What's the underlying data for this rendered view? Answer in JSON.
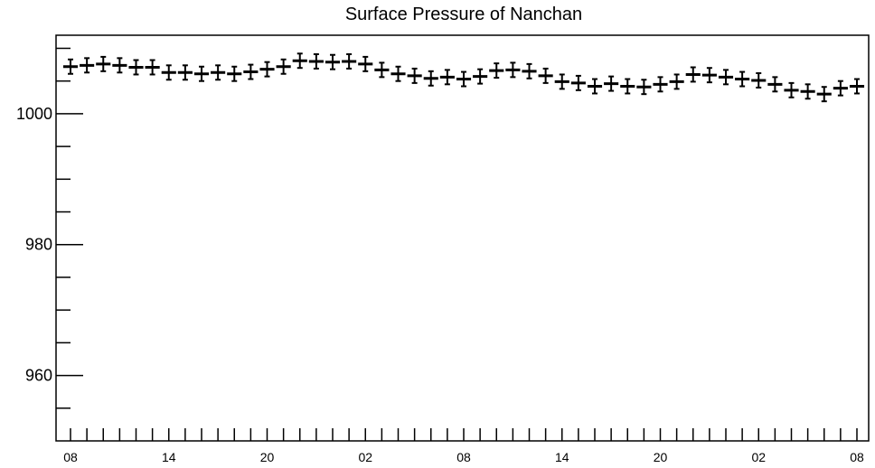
{
  "chart_data": {
    "type": "errorbar",
    "title": "Surface Pressure of Nanchan",
    "xlabel": "",
    "ylabel": "",
    "ylim": [
      950,
      1012
    ],
    "y_major_ticks": [
      960,
      980,
      1000
    ],
    "y_minor_step": 5,
    "x_tick_labels": [
      "08",
      "14",
      "20",
      "02",
      "08",
      "14",
      "20",
      "02",
      "08"
    ],
    "x_tick_label_every": 6,
    "error": 1.1,
    "points": [
      1007.2,
      1007.4,
      1007.6,
      1007.4,
      1007.1,
      1007.1,
      1006.3,
      1006.3,
      1006.1,
      1006.3,
      1006.1,
      1006.4,
      1006.8,
      1007.2,
      1008.1,
      1008.0,
      1007.9,
      1008.0,
      1007.6,
      1006.7,
      1006.1,
      1005.8,
      1005.4,
      1005.6,
      1005.3,
      1005.7,
      1006.6,
      1006.7,
      1006.5,
      1005.8,
      1004.9,
      1004.7,
      1004.2,
      1004.6,
      1004.2,
      1004.1,
      1004.5,
      1004.9,
      1006.0,
      1005.9,
      1005.6,
      1005.3,
      1005.1,
      1004.5,
      1003.6,
      1003.4,
      1003.0,
      1003.9,
      1004.2
    ]
  }
}
